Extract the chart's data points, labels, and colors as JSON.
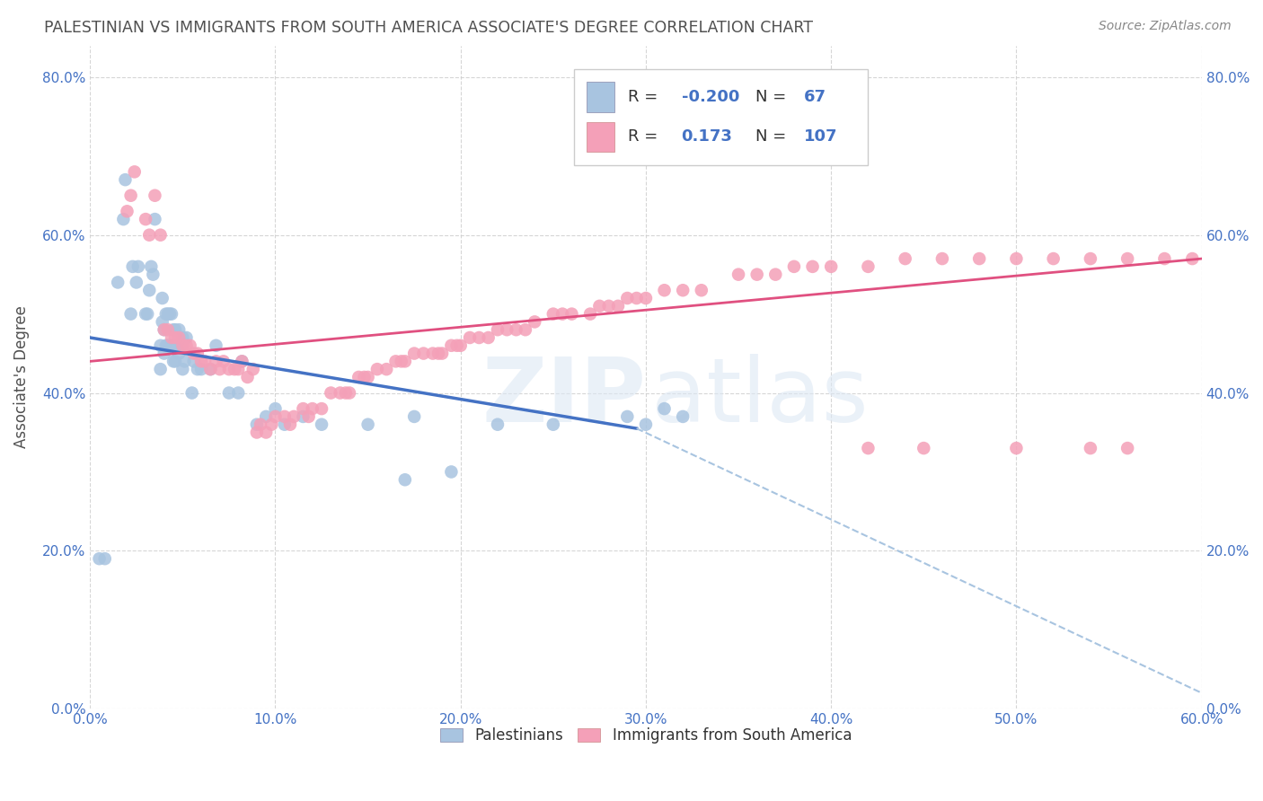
{
  "title": "PALESTINIAN VS IMMIGRANTS FROM SOUTH AMERICA ASSOCIATE'S DEGREE CORRELATION CHART",
  "source": "Source: ZipAtlas.com",
  "ylabel": "Associate's Degree",
  "watermark_zip": "ZIP",
  "watermark_atlas": "atlas",
  "xlim": [
    0.0,
    0.6
  ],
  "ylim": [
    0.0,
    0.84
  ],
  "xticks": [
    0.0,
    0.1,
    0.2,
    0.3,
    0.4,
    0.5,
    0.6
  ],
  "yticks": [
    0.0,
    0.2,
    0.4,
    0.6,
    0.8
  ],
  "legend_blue_r": "-0.200",
  "legend_blue_n": "67",
  "legend_pink_r": "0.173",
  "legend_pink_n": "107",
  "blue_color": "#a8c4e0",
  "pink_color": "#f4a0b8",
  "blue_line_color": "#4472c4",
  "pink_line_color": "#e05080",
  "dashed_line_color": "#a8c4e0",
  "grid_color": "#cccccc",
  "title_color": "#505050",
  "axis_label_color": "#4472c4",
  "legend_r_color": "#4472c4",
  "blue_scatter_x": [
    0.005,
    0.008,
    0.015,
    0.018,
    0.019,
    0.022,
    0.023,
    0.025,
    0.026,
    0.03,
    0.031,
    0.032,
    0.033,
    0.034,
    0.035,
    0.038,
    0.038,
    0.039,
    0.039,
    0.04,
    0.04,
    0.041,
    0.041,
    0.042,
    0.042,
    0.043,
    0.043,
    0.044,
    0.044,
    0.045,
    0.045,
    0.046,
    0.046,
    0.047,
    0.048,
    0.048,
    0.049,
    0.05,
    0.05,
    0.051,
    0.052,
    0.055,
    0.056,
    0.058,
    0.06,
    0.065,
    0.068,
    0.075,
    0.08,
    0.082,
    0.09,
    0.095,
    0.1,
    0.105,
    0.115,
    0.125,
    0.15,
    0.17,
    0.175,
    0.195,
    0.22,
    0.25,
    0.29,
    0.3,
    0.31,
    0.32
  ],
  "blue_scatter_y": [
    0.19,
    0.19,
    0.54,
    0.62,
    0.67,
    0.5,
    0.56,
    0.54,
    0.56,
    0.5,
    0.5,
    0.53,
    0.56,
    0.55,
    0.62,
    0.43,
    0.46,
    0.49,
    0.52,
    0.45,
    0.48,
    0.46,
    0.5,
    0.46,
    0.5,
    0.46,
    0.5,
    0.46,
    0.5,
    0.44,
    0.48,
    0.44,
    0.48,
    0.46,
    0.45,
    0.48,
    0.46,
    0.43,
    0.47,
    0.44,
    0.47,
    0.4,
    0.44,
    0.43,
    0.43,
    0.43,
    0.46,
    0.4,
    0.4,
    0.44,
    0.36,
    0.37,
    0.38,
    0.36,
    0.37,
    0.36,
    0.36,
    0.29,
    0.37,
    0.3,
    0.36,
    0.36,
    0.37,
    0.36,
    0.38,
    0.37
  ],
  "pink_scatter_x": [
    0.02,
    0.022,
    0.024,
    0.03,
    0.032,
    0.035,
    0.038,
    0.04,
    0.042,
    0.044,
    0.046,
    0.048,
    0.05,
    0.052,
    0.054,
    0.056,
    0.058,
    0.06,
    0.062,
    0.065,
    0.068,
    0.07,
    0.072,
    0.075,
    0.078,
    0.08,
    0.082,
    0.085,
    0.088,
    0.09,
    0.092,
    0.095,
    0.098,
    0.1,
    0.105,
    0.108,
    0.11,
    0.115,
    0.118,
    0.12,
    0.125,
    0.13,
    0.135,
    0.138,
    0.14,
    0.145,
    0.148,
    0.15,
    0.155,
    0.16,
    0.165,
    0.168,
    0.17,
    0.175,
    0.18,
    0.185,
    0.188,
    0.19,
    0.195,
    0.198,
    0.2,
    0.205,
    0.21,
    0.215,
    0.22,
    0.225,
    0.23,
    0.235,
    0.24,
    0.25,
    0.255,
    0.26,
    0.27,
    0.275,
    0.28,
    0.285,
    0.29,
    0.295,
    0.3,
    0.31,
    0.32,
    0.33,
    0.35,
    0.36,
    0.37,
    0.38,
    0.39,
    0.4,
    0.42,
    0.44,
    0.46,
    0.48,
    0.5,
    0.52,
    0.54,
    0.56,
    0.58,
    0.595,
    0.42,
    0.45,
    0.5,
    0.54,
    0.56
  ],
  "pink_scatter_y": [
    0.63,
    0.65,
    0.68,
    0.62,
    0.6,
    0.65,
    0.6,
    0.48,
    0.48,
    0.47,
    0.47,
    0.47,
    0.46,
    0.46,
    0.46,
    0.45,
    0.45,
    0.44,
    0.44,
    0.43,
    0.44,
    0.43,
    0.44,
    0.43,
    0.43,
    0.43,
    0.44,
    0.42,
    0.43,
    0.35,
    0.36,
    0.35,
    0.36,
    0.37,
    0.37,
    0.36,
    0.37,
    0.38,
    0.37,
    0.38,
    0.38,
    0.4,
    0.4,
    0.4,
    0.4,
    0.42,
    0.42,
    0.42,
    0.43,
    0.43,
    0.44,
    0.44,
    0.44,
    0.45,
    0.45,
    0.45,
    0.45,
    0.45,
    0.46,
    0.46,
    0.46,
    0.47,
    0.47,
    0.47,
    0.48,
    0.48,
    0.48,
    0.48,
    0.49,
    0.5,
    0.5,
    0.5,
    0.5,
    0.51,
    0.51,
    0.51,
    0.52,
    0.52,
    0.52,
    0.53,
    0.53,
    0.53,
    0.55,
    0.55,
    0.55,
    0.56,
    0.56,
    0.56,
    0.56,
    0.57,
    0.57,
    0.57,
    0.57,
    0.57,
    0.57,
    0.57,
    0.57,
    0.57,
    0.33,
    0.33,
    0.33,
    0.33,
    0.33
  ],
  "blue_line_x": [
    0.0,
    0.295
  ],
  "blue_line_y": [
    0.47,
    0.355
  ],
  "pink_line_x": [
    0.0,
    0.6
  ],
  "pink_line_y": [
    0.44,
    0.57
  ],
  "dashed_line_x": [
    0.295,
    0.6
  ],
  "dashed_line_y": [
    0.355,
    0.02
  ]
}
